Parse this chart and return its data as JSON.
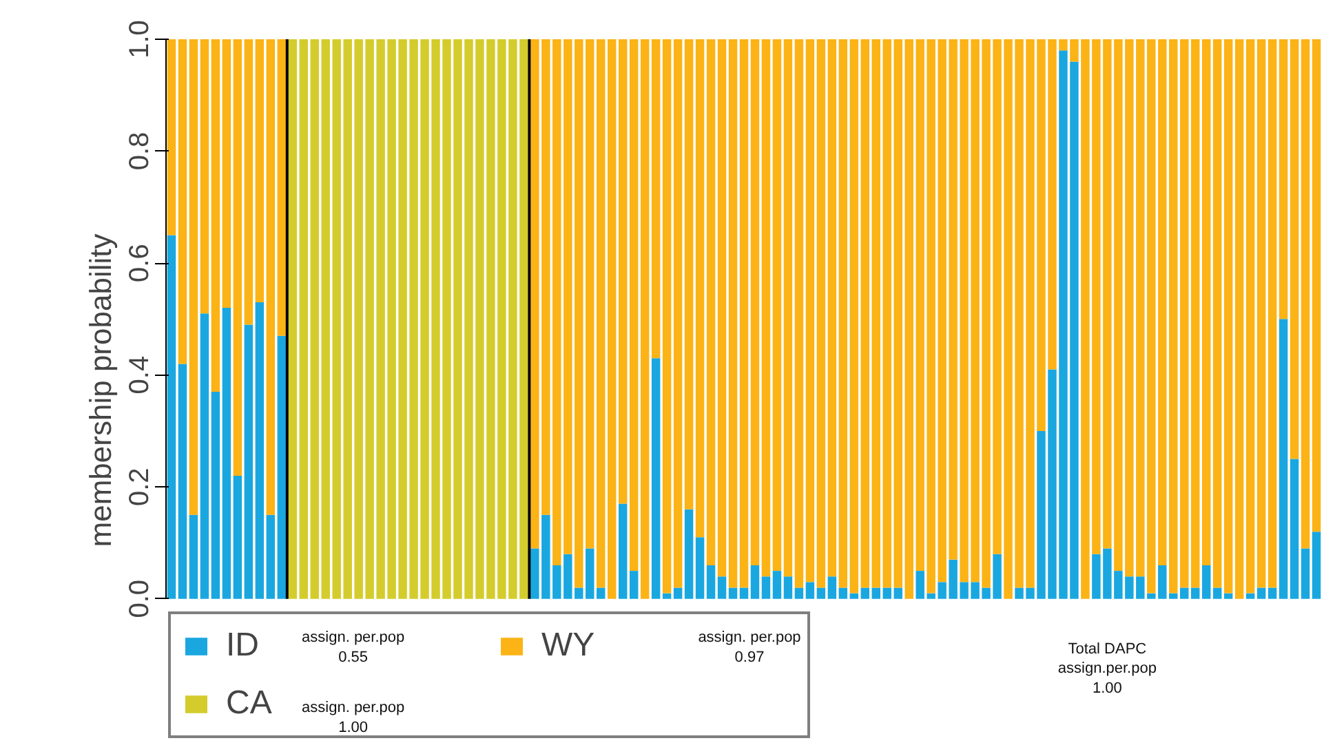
{
  "chart_data": {
    "type": "bar",
    "stacked": true,
    "ylabel": "membership probability",
    "categories": [
      null,
      null,
      null,
      null,
      null,
      null,
      null,
      null,
      null,
      null,
      null,
      null,
      null,
      null,
      null,
      null,
      null,
      null,
      null,
      null,
      null,
      null,
      null,
      null,
      null,
      null,
      null,
      null,
      null,
      null,
      null,
      null,
      null,
      null,
      null,
      null,
      null,
      null,
      null,
      null,
      null,
      null,
      null,
      null,
      null,
      null,
      null,
      null,
      null,
      null,
      null,
      null,
      null,
      null,
      null,
      null,
      null,
      null,
      null,
      null,
      null,
      null,
      null,
      null,
      null,
      null,
      null,
      null,
      null,
      null,
      null,
      null,
      null,
      null,
      null,
      null,
      null,
      null,
      null,
      null,
      null,
      null,
      null,
      null,
      null,
      null,
      null,
      null,
      null,
      null,
      null,
      null,
      null,
      null,
      null,
      null,
      null,
      null,
      null,
      null,
      null,
      null,
      null,
      null,
      null
    ],
    "series": [
      {
        "name": "ID",
        "color": "#1aa7e0",
        "values": [
          0.65,
          0.42,
          0.15,
          0.51,
          0.37,
          0.52,
          0.22,
          0.49,
          0.53,
          0.15,
          0.47,
          0,
          0,
          0,
          0,
          0,
          0,
          0,
          0,
          0,
          0,
          0,
          0,
          0,
          0,
          0,
          0,
          0,
          0,
          0,
          0,
          0,
          0,
          0.09,
          0.15,
          0.06,
          0.08,
          0.02,
          0.09,
          0.02,
          0.0,
          0.17,
          0.05,
          0.0,
          0.43,
          0.01,
          0.02,
          0.16,
          0.11,
          0.06,
          0.04,
          0.02,
          0.02,
          0.06,
          0.04,
          0.05,
          0.04,
          0.02,
          0.03,
          0.02,
          0.04,
          0.02,
          0.01,
          0.02,
          0.02,
          0.02,
          0.02,
          0.0,
          0.05,
          0.01,
          0.03,
          0.07,
          0.03,
          0.03,
          0.02,
          0.08,
          0.0,
          0.02,
          0.02,
          0.3,
          0.41,
          0.98,
          0.96,
          0.0,
          0.08,
          0.09,
          0.05,
          0.04,
          0.04,
          0.01,
          0.06,
          0.01,
          0.02,
          0.02,
          0.06,
          0.02,
          0.01,
          0.0,
          0.01,
          0.02,
          0.02,
          0.5,
          0.25,
          0.09,
          0.12
        ]
      },
      {
        "name": "CA",
        "color": "#d4cc2c",
        "values": [
          0,
          0,
          0,
          0,
          0,
          0,
          0,
          0,
          0,
          0,
          0,
          1,
          1,
          1,
          1,
          1,
          1,
          1,
          1,
          1,
          1,
          1,
          1,
          1,
          1,
          1,
          1,
          1,
          1,
          1,
          1,
          1,
          1,
          0,
          0,
          0,
          0,
          0,
          0,
          0,
          0,
          0,
          0,
          0,
          0,
          0,
          0,
          0,
          0,
          0,
          0,
          0,
          0,
          0,
          0,
          0,
          0,
          0,
          0,
          0,
          0,
          0,
          0,
          0,
          0,
          0,
          0,
          0,
          0,
          0,
          0,
          0,
          0,
          0,
          0,
          0,
          0,
          0,
          0,
          0,
          0,
          0,
          0,
          0,
          0,
          0,
          0,
          0,
          0,
          0,
          0,
          0,
          0,
          0,
          0,
          0,
          0,
          0,
          0,
          0,
          0,
          0,
          0,
          0,
          0
        ]
      },
      {
        "name": "WY",
        "color": "#fbb316",
        "values": [
          0.35,
          0.58,
          0.85,
          0.49,
          0.63,
          0.48,
          0.78,
          0.51,
          0.47,
          0.85,
          0.53,
          0,
          0,
          0,
          0,
          0,
          0,
          0,
          0,
          0,
          0,
          0,
          0,
          0,
          0,
          0,
          0,
          0,
          0,
          0,
          0,
          0,
          0,
          0.91,
          0.85,
          0.94,
          0.92,
          0.98,
          0.91,
          0.98,
          1.0,
          0.83,
          0.95,
          1.0,
          0.57,
          0.99,
          0.98,
          0.84,
          0.89,
          0.94,
          0.96,
          0.98,
          0.98,
          0.94,
          0.96,
          0.95,
          0.96,
          0.98,
          0.97,
          0.98,
          0.96,
          0.98,
          0.99,
          0.98,
          0.98,
          0.98,
          0.98,
          1.0,
          0.95,
          0.99,
          0.97,
          0.93,
          0.97,
          0.97,
          0.98,
          0.92,
          1.0,
          0.98,
          0.98,
          0.7,
          0.59,
          0.02,
          0.04,
          1.0,
          0.92,
          0.91,
          0.95,
          0.96,
          0.96,
          0.99,
          0.94,
          0.99,
          0.98,
          0.98,
          0.94,
          0.98,
          0.99,
          1.0,
          0.99,
          0.98,
          0.98,
          0.5,
          0.75,
          0.91,
          0.88
        ]
      }
    ],
    "ylim": [
      0,
      1
    ],
    "yticks": [
      {
        "value": 0,
        "label": "0.0"
      },
      {
        "value": 0.2,
        "label": "0.2"
      },
      {
        "value": 0.4,
        "label": "0.4"
      },
      {
        "value": 0.6,
        "label": "0.6"
      },
      {
        "value": 0.8,
        "label": "0.8"
      },
      {
        "value": 1,
        "label": "1.0"
      }
    ],
    "tick_labels": "y",
    "grid": false,
    "legend": "bottom",
    "annotations": [
      "assign. per.pop\n0.55",
      "assign. per.pop\n1.00",
      "assign. per.pop\n0.97",
      "Total DAPC\nassign.per.pop\n1.00"
    ]
  }
}
